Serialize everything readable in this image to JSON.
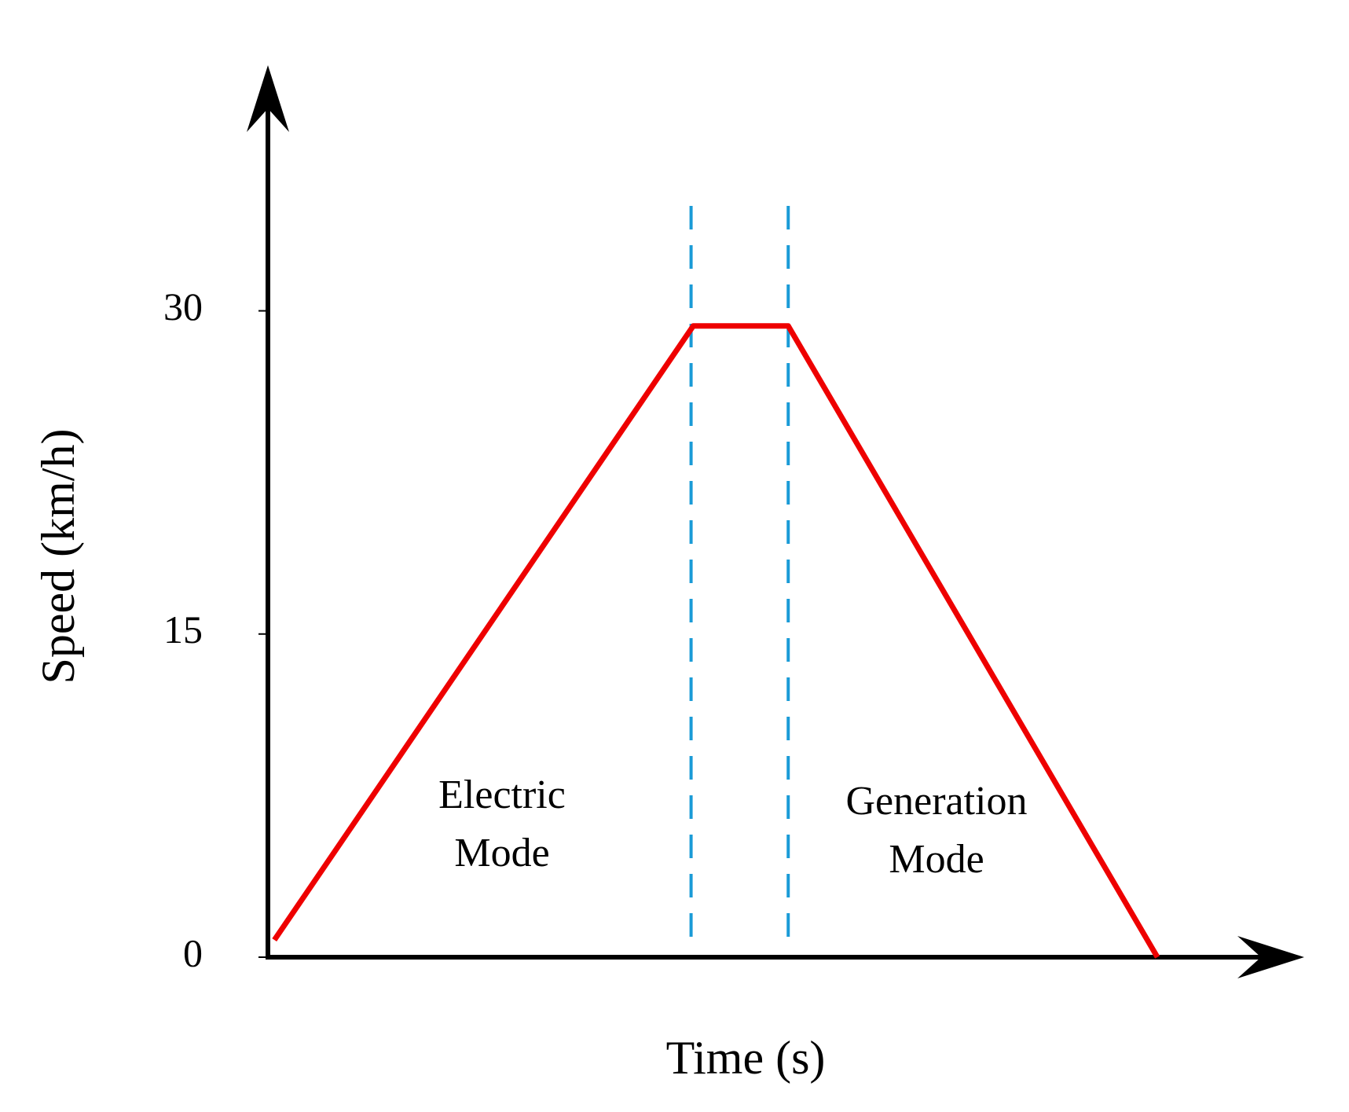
{
  "chart_data": {
    "type": "line",
    "x_label": "Time (s)",
    "y_label": "Speed (km/h)",
    "x": [
      0.3,
      19.7,
      24.1,
      41.2
    ],
    "series": [
      {
        "color": "#ee0000",
        "values": [
          0.8,
          29.3,
          29.3,
          0
        ]
      }
    ],
    "xlim": [
      0,
      48
    ],
    "ylim": [
      0,
      41.4
    ],
    "yticks": [
      0,
      15,
      30
    ],
    "vlines": [
      19.6,
      24.1
    ],
    "vline_color": "#1a9bd7",
    "annotations": [
      [
        "Electric",
        "Mode"
      ],
      [
        "Generation",
        "Mode"
      ]
    ]
  }
}
